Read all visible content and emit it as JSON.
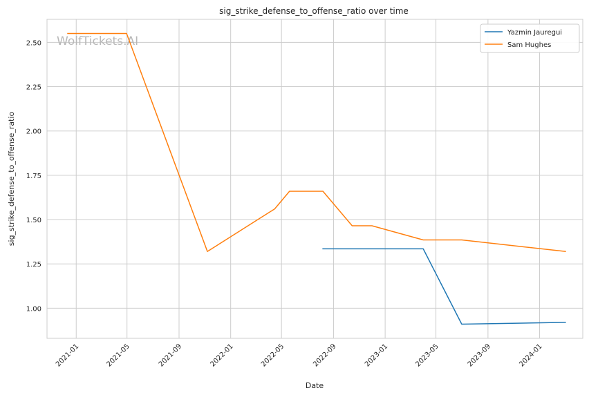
{
  "chart_data": {
    "type": "line",
    "title": "sig_strike_defense_to_offense_ratio over time",
    "xlabel": "Date",
    "ylabel": "sig_strike_defense_to_offense_ratio",
    "watermark": "WolfTickets.AI",
    "xlim": [
      "2020-10-24",
      "2024-04-12"
    ],
    "ylim": [
      0.83,
      2.63
    ],
    "x_ticks": [
      {
        "date": "2021-01-01",
        "label": "2021-01"
      },
      {
        "date": "2021-05-01",
        "label": "2021-05"
      },
      {
        "date": "2021-09-01",
        "label": "2021-09"
      },
      {
        "date": "2022-01-01",
        "label": "2022-01"
      },
      {
        "date": "2022-05-01",
        "label": "2022-05"
      },
      {
        "date": "2022-09-01",
        "label": "2022-09"
      },
      {
        "date": "2023-01-01",
        "label": "2023-01"
      },
      {
        "date": "2023-05-01",
        "label": "2023-05"
      },
      {
        "date": "2023-09-01",
        "label": "2023-09"
      },
      {
        "date": "2024-01-01",
        "label": "2024-01"
      }
    ],
    "y_ticks": [
      {
        "value": 1.0,
        "label": "1.00"
      },
      {
        "value": 1.25,
        "label": "1.25"
      },
      {
        "value": 1.5,
        "label": "1.50"
      },
      {
        "value": 1.75,
        "label": "1.75"
      },
      {
        "value": 2.0,
        "label": "2.00"
      },
      {
        "value": 2.25,
        "label": "2.25"
      },
      {
        "value": 2.5,
        "label": "2.50"
      }
    ],
    "grid": true,
    "legend_position": "top-right",
    "series": [
      {
        "name": "Yazmin Jauregui",
        "color": "#1f77b4",
        "points": [
          {
            "x": "2022-08-07",
            "y": 1.335
          },
          {
            "x": "2023-04-01",
            "y": 1.335
          },
          {
            "x": "2023-07-01",
            "y": 0.91
          },
          {
            "x": "2024-03-02",
            "y": 0.92
          }
        ]
      },
      {
        "name": "Sam Hughes",
        "color": "#ff7f0e",
        "points": [
          {
            "x": "2020-12-12",
            "y": 2.55
          },
          {
            "x": "2021-04-30",
            "y": 2.55
          },
          {
            "x": "2021-11-07",
            "y": 1.32
          },
          {
            "x": "2022-04-15",
            "y": 1.56
          },
          {
            "x": "2022-05-20",
            "y": 1.66
          },
          {
            "x": "2022-08-07",
            "y": 1.66
          },
          {
            "x": "2022-10-15",
            "y": 1.465
          },
          {
            "x": "2022-12-01",
            "y": 1.465
          },
          {
            "x": "2023-04-01",
            "y": 1.385
          },
          {
            "x": "2023-07-01",
            "y": 1.385
          },
          {
            "x": "2024-03-02",
            "y": 1.32
          }
        ]
      }
    ]
  }
}
